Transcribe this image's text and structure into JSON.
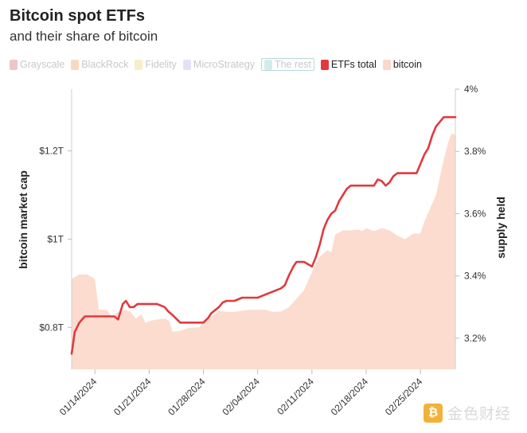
{
  "header": {
    "title": "Bitcoin spot ETFs",
    "subtitle": "and their share of bitcoin"
  },
  "legend": [
    {
      "label": "Grayscale",
      "color": "#e8aeb0",
      "active": false
    },
    {
      "label": "BlackRock",
      "color": "#f3c9a8",
      "active": false
    },
    {
      "label": "Fidelity",
      "color": "#f7e4b4",
      "active": false
    },
    {
      "label": "MicroStrategy",
      "color": "#ddd2f4",
      "active": false
    },
    {
      "label": "The rest",
      "color": "#bfe6df",
      "active": false
    },
    {
      "label": "ETFs total",
      "color": "#e03a3e",
      "active": true
    },
    {
      "label": "bitcoin",
      "color": "#fbd8c9",
      "active": true
    }
  ],
  "watermark": {
    "logo_char": "₿",
    "text": "金色财经"
  },
  "chart_data": {
    "type": "line",
    "x_tick_labels": [
      "01/14/2024",
      "01/21/2024",
      "01/28/2024",
      "02/04/2024",
      "02/11/2024",
      "02/18/2024",
      "02/25/2024"
    ],
    "x_tick_days": [
      3,
      10,
      17,
      24,
      31,
      38,
      45
    ],
    "x_range_days": [
      0,
      49.5
    ],
    "y_left": {
      "label": "bitcoin market cap",
      "unit": "T$",
      "range": [
        0.705,
        1.34
      ],
      "ticks": [
        0.8,
        1.0,
        1.2
      ],
      "tick_labels": [
        "$0.8T",
        "$1T",
        "$1.2T"
      ]
    },
    "y_right": {
      "label": "supply held",
      "unit": "%",
      "range": [
        3.1,
        4.0
      ],
      "ticks": [
        3.2,
        3.4,
        3.6,
        3.8,
        4.0
      ],
      "tick_labels": [
        "3.2%",
        "3.4%",
        "3.6%",
        "3.8%",
        "4%"
      ]
    },
    "series": [
      {
        "name": "bitcoin",
        "axis": "left",
        "style": "area",
        "color": "#fbdccf",
        "points": [
          [
            0,
            0.91
          ],
          [
            1,
            0.92
          ],
          [
            2,
            0.92
          ],
          [
            3,
            0.91
          ],
          [
            3.5,
            0.84
          ],
          [
            4.5,
            0.84
          ],
          [
            5.2,
            0.825
          ],
          [
            6,
            0.835
          ],
          [
            7,
            0.84
          ],
          [
            7.6,
            0.835
          ],
          [
            8.3,
            0.82
          ],
          [
            9,
            0.83
          ],
          [
            9.5,
            0.81
          ],
          [
            10.2,
            0.815
          ],
          [
            11,
            0.818
          ],
          [
            12,
            0.82
          ],
          [
            12.6,
            0.815
          ],
          [
            13,
            0.79
          ],
          [
            14,
            0.792
          ],
          [
            15,
            0.798
          ],
          [
            16,
            0.8
          ],
          [
            16.5,
            0.8
          ],
          [
            17,
            0.815
          ],
          [
            17.5,
            0.822
          ],
          [
            18,
            0.825
          ],
          [
            18.5,
            0.83
          ],
          [
            19,
            0.838
          ],
          [
            20,
            0.835
          ],
          [
            21,
            0.835
          ],
          [
            22,
            0.838
          ],
          [
            23,
            0.84
          ],
          [
            24,
            0.84
          ],
          [
            25,
            0.84
          ],
          [
            26,
            0.835
          ],
          [
            27,
            0.836
          ],
          [
            28,
            0.845
          ],
          [
            29,
            0.865
          ],
          [
            30,
            0.885
          ],
          [
            30.6,
            0.91
          ],
          [
            31,
            0.925
          ],
          [
            31.3,
            0.94
          ],
          [
            32,
            0.96
          ],
          [
            33,
            0.975
          ],
          [
            33.5,
            0.97
          ],
          [
            34,
            1.01
          ],
          [
            35,
            1.02
          ],
          [
            36,
            1.02
          ],
          [
            37,
            1.022
          ],
          [
            37.5,
            1.018
          ],
          [
            38,
            1.025
          ],
          [
            39,
            1.018
          ],
          [
            40,
            1.025
          ],
          [
            41,
            1.02
          ],
          [
            42,
            1.008
          ],
          [
            43,
            1.0
          ],
          [
            44,
            1.012
          ],
          [
            45,
            1.013
          ],
          [
            45.5,
            1.04
          ],
          [
            46,
            1.06
          ],
          [
            47,
            1.1
          ],
          [
            48,
            1.18
          ],
          [
            48.6,
            1.22
          ],
          [
            49,
            1.24
          ],
          [
            49.5,
            1.235
          ]
        ]
      },
      {
        "name": "ETFs total",
        "axis": "right",
        "style": "line",
        "color": "#e03a3e",
        "points": [
          [
            0,
            3.15
          ],
          [
            0.4,
            3.22
          ],
          [
            1,
            3.25
          ],
          [
            1.7,
            3.27
          ],
          [
            2.5,
            3.27
          ],
          [
            3.5,
            3.27
          ],
          [
            4.5,
            3.27
          ],
          [
            5.5,
            3.27
          ],
          [
            6,
            3.26
          ],
          [
            6.6,
            3.31
          ],
          [
            7,
            3.32
          ],
          [
            7.5,
            3.3
          ],
          [
            8,
            3.3
          ],
          [
            8.5,
            3.31
          ],
          [
            9,
            3.31
          ],
          [
            10,
            3.31
          ],
          [
            11,
            3.31
          ],
          [
            11.5,
            3.305
          ],
          [
            12,
            3.3
          ],
          [
            12.5,
            3.285
          ],
          [
            13,
            3.275
          ],
          [
            14,
            3.25
          ],
          [
            15,
            3.25
          ],
          [
            16,
            3.25
          ],
          [
            17,
            3.25
          ],
          [
            17.6,
            3.265
          ],
          [
            18,
            3.28
          ],
          [
            19,
            3.3
          ],
          [
            19.5,
            3.315
          ],
          [
            20,
            3.32
          ],
          [
            21,
            3.32
          ],
          [
            22,
            3.33
          ],
          [
            23,
            3.33
          ],
          [
            24,
            3.33
          ],
          [
            25,
            3.34
          ],
          [
            26,
            3.35
          ],
          [
            27,
            3.36
          ],
          [
            27.5,
            3.37
          ],
          [
            28,
            3.4
          ],
          [
            28.6,
            3.43
          ],
          [
            29,
            3.445
          ],
          [
            30,
            3.445
          ],
          [
            31,
            3.43
          ],
          [
            31.5,
            3.46
          ],
          [
            32,
            3.5
          ],
          [
            32.5,
            3.55
          ],
          [
            33,
            3.58
          ],
          [
            33.5,
            3.6
          ],
          [
            34,
            3.61
          ],
          [
            34.5,
            3.64
          ],
          [
            35,
            3.66
          ],
          [
            35.5,
            3.68
          ],
          [
            36,
            3.69
          ],
          [
            37,
            3.69
          ],
          [
            38,
            3.69
          ],
          [
            39,
            3.69
          ],
          [
            39.5,
            3.71
          ],
          [
            40,
            3.705
          ],
          [
            40.5,
            3.69
          ],
          [
            41,
            3.7
          ],
          [
            41.5,
            3.72
          ],
          [
            42,
            3.73
          ],
          [
            43,
            3.73
          ],
          [
            44,
            3.73
          ],
          [
            44.5,
            3.73
          ],
          [
            45,
            3.76
          ],
          [
            45.5,
            3.79
          ],
          [
            46,
            3.81
          ],
          [
            46.5,
            3.85
          ],
          [
            47,
            3.88
          ],
          [
            48,
            3.91
          ],
          [
            49,
            3.91
          ],
          [
            49.5,
            3.91
          ]
        ]
      }
    ]
  }
}
